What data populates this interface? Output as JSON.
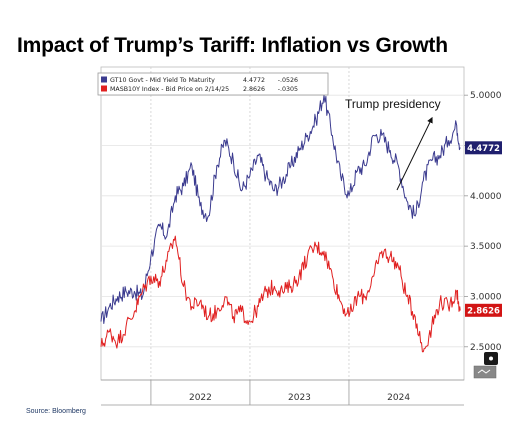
{
  "title": "Impact of Trump’s Tariff:  Inflation vs Growth",
  "source": "Source: Bloomberg",
  "chart_data": {
    "type": "line",
    "title": "Impact of Trump’s Tariff:  Inflation vs Growth",
    "x_axis": {
      "type": "date",
      "range": [
        "2021-07-01",
        "2025-02-28"
      ],
      "tick_labels": [
        "2022",
        "2023",
        "2024"
      ]
    },
    "y_axis": {
      "side": "right",
      "range": [
        2.17,
        5.28
      ],
      "tick_labels": [
        "2.5000",
        "3.0000",
        "3.5000",
        "4.0000",
        "4.5000",
        "5.0000"
      ]
    },
    "grid": true,
    "legend_position": "top-left",
    "series": [
      {
        "name": "GT10 Govt - Mid Yield To Maturity",
        "legend_value": "4.4772",
        "legend_change": "-.0526",
        "last_value_tag": "4.4772",
        "color": "#3b3b8f",
        "x": [
          "2021-07-01",
          "2021-08-01",
          "2021-09-01",
          "2021-10-01",
          "2021-11-01",
          "2021-12-01",
          "2022-01-01",
          "2022-02-01",
          "2022-03-01",
          "2022-04-01",
          "2022-05-01",
          "2022-06-01",
          "2022-07-01",
          "2022-08-01",
          "2022-09-01",
          "2022-10-01",
          "2022-11-01",
          "2022-12-01",
          "2023-01-01",
          "2023-02-01",
          "2023-03-01",
          "2023-04-01",
          "2023-05-01",
          "2023-06-01",
          "2023-07-01",
          "2023-08-01",
          "2023-09-01",
          "2023-10-01",
          "2023-11-01",
          "2023-12-01",
          "2024-01-01",
          "2024-02-01",
          "2024-03-01",
          "2024-04-01",
          "2024-05-01",
          "2024-06-01",
          "2024-07-01",
          "2024-08-01",
          "2024-09-01",
          "2024-10-01",
          "2024-11-01",
          "2024-12-01",
          "2025-01-01",
          "2025-02-01",
          "2025-02-14"
        ],
        "values": [
          2.75,
          2.9,
          3.0,
          3.05,
          3.05,
          3.0,
          3.4,
          3.7,
          3.6,
          4.0,
          4.1,
          4.3,
          3.9,
          3.8,
          4.3,
          4.55,
          4.35,
          4.05,
          4.2,
          4.4,
          4.2,
          4.05,
          4.15,
          4.3,
          4.45,
          4.6,
          4.75,
          5.0,
          4.6,
          4.2,
          4.0,
          4.25,
          4.3,
          4.6,
          4.6,
          4.45,
          4.3,
          3.95,
          3.8,
          4.15,
          4.35,
          4.4,
          4.55,
          4.7,
          4.48
        ]
      },
      {
        "name": "MASB10Y Index - Bid Price on 2/14/25",
        "legend_value": "2.8626",
        "legend_change": "-.0305",
        "last_value_tag": "2.8626",
        "color": "#e02020",
        "x": [
          "2021-07-01",
          "2021-08-01",
          "2021-09-01",
          "2021-10-01",
          "2021-11-01",
          "2021-12-01",
          "2022-01-01",
          "2022-02-01",
          "2022-03-01",
          "2022-04-01",
          "2022-05-01",
          "2022-06-01",
          "2022-07-01",
          "2022-08-01",
          "2022-09-01",
          "2022-10-01",
          "2022-11-01",
          "2022-12-01",
          "2023-01-01",
          "2023-02-01",
          "2023-03-01",
          "2023-04-01",
          "2023-05-01",
          "2023-06-01",
          "2023-07-01",
          "2023-08-01",
          "2023-09-01",
          "2023-10-01",
          "2023-11-01",
          "2023-12-01",
          "2024-01-01",
          "2024-02-01",
          "2024-03-01",
          "2024-04-01",
          "2024-05-01",
          "2024-06-01",
          "2024-07-01",
          "2024-08-01",
          "2024-09-01",
          "2024-10-01",
          "2024-11-01",
          "2024-12-01",
          "2025-01-01",
          "2025-02-01",
          "2025-02-14"
        ],
        "values": [
          2.5,
          2.65,
          2.55,
          2.7,
          2.85,
          3.05,
          3.2,
          3.15,
          3.35,
          3.6,
          3.1,
          2.9,
          2.95,
          2.8,
          2.85,
          3.0,
          2.8,
          2.85,
          2.75,
          2.9,
          3.05,
          3.1,
          3.05,
          3.1,
          3.2,
          3.4,
          3.5,
          3.45,
          3.2,
          2.95,
          2.8,
          3.0,
          3.0,
          3.2,
          3.45,
          3.4,
          3.3,
          3.0,
          2.8,
          2.45,
          2.7,
          2.95,
          2.9,
          3.05,
          2.86
        ]
      }
    ],
    "annotations": [
      {
        "text": "Trump presidency"
      }
    ]
  }
}
